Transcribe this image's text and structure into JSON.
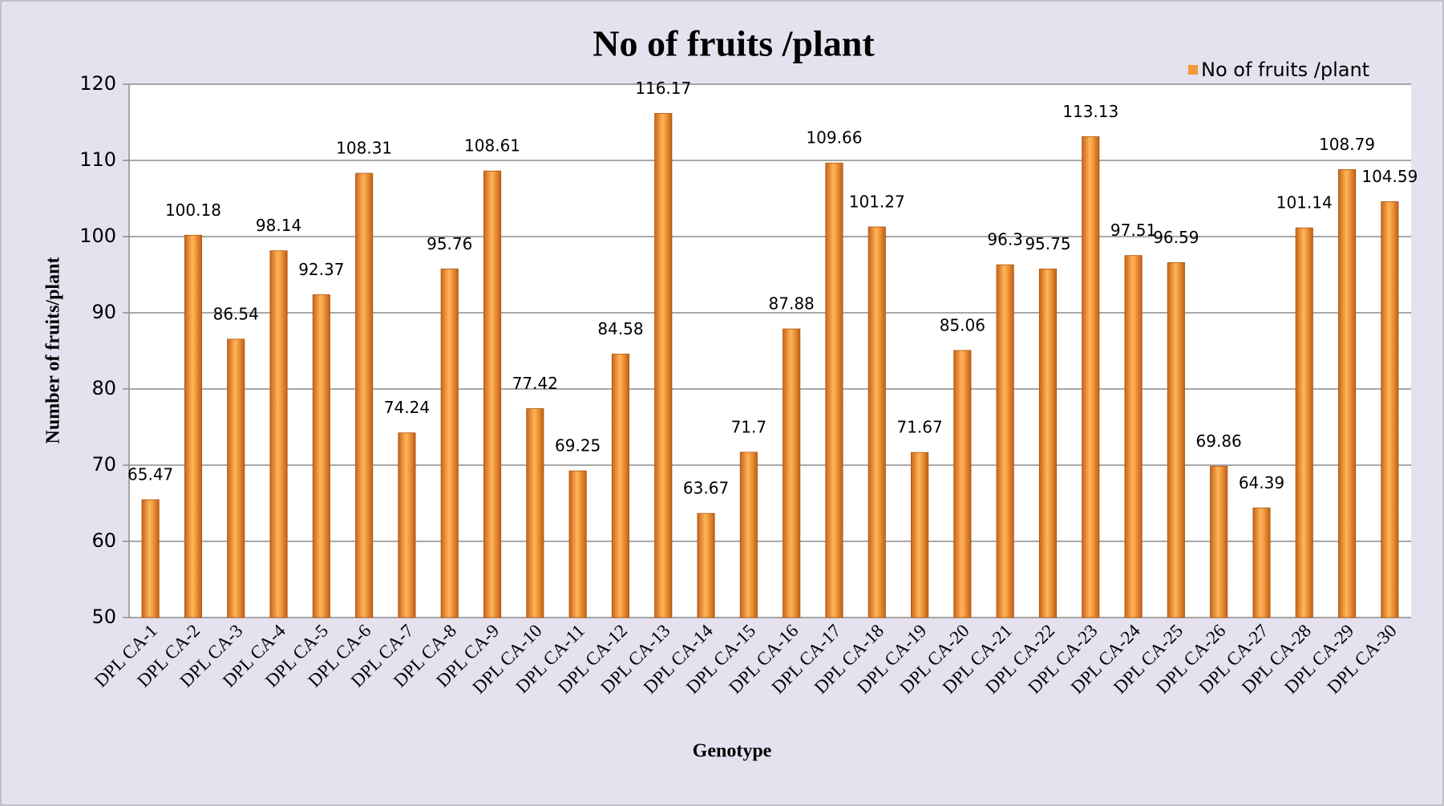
{
  "chart_data": {
    "type": "bar",
    "title": "No of fruits /plant",
    "x_label": "Genotype",
    "y_label": "Number of fruits/plant",
    "categories": [
      "DPL CA-1",
      "DPL CA-2",
      "DPL CA-3",
      "DPL CA-4",
      "DPL CA-5",
      "DPL CA-6",
      "DPL CA-7",
      "DPL CA-8",
      "DPL CA-9",
      "DPL CA-10",
      "DPL CA-11",
      "DPL CA-12",
      "DPL CA-13",
      "DPL CA-14",
      "DPL CA-15",
      "DPL CA-16",
      "DPL CA-17",
      "DPL CA-18",
      "DPL CA-19",
      "DPL CA-20",
      "DPL CA-21",
      "DPL CA-22",
      "DPL CA-23",
      "DPL CA-24",
      "DPL CA-25",
      "DPL CA-26",
      "DPL CA-27",
      "DPL CA-28",
      "DPL CA-29",
      "DPL CA-30"
    ],
    "series": [
      {
        "name": "No of fruits /plant",
        "color": "#f09a3a",
        "values": [
          65.47,
          100.18,
          86.54,
          98.14,
          92.37,
          108.31,
          74.24,
          95.76,
          108.61,
          77.42,
          69.25,
          84.58,
          116.17,
          63.67,
          71.7,
          87.88,
          109.66,
          101.27,
          71.67,
          85.06,
          96.3,
          95.75,
          113.13,
          97.51,
          96.59,
          69.86,
          64.39,
          101.14,
          108.79,
          104.59
        ]
      }
    ],
    "ylim": [
      50,
      120
    ],
    "yticks": [
      50,
      60,
      70,
      80,
      90,
      100,
      110,
      120
    ],
    "grid": true,
    "legend": "top-right"
  }
}
